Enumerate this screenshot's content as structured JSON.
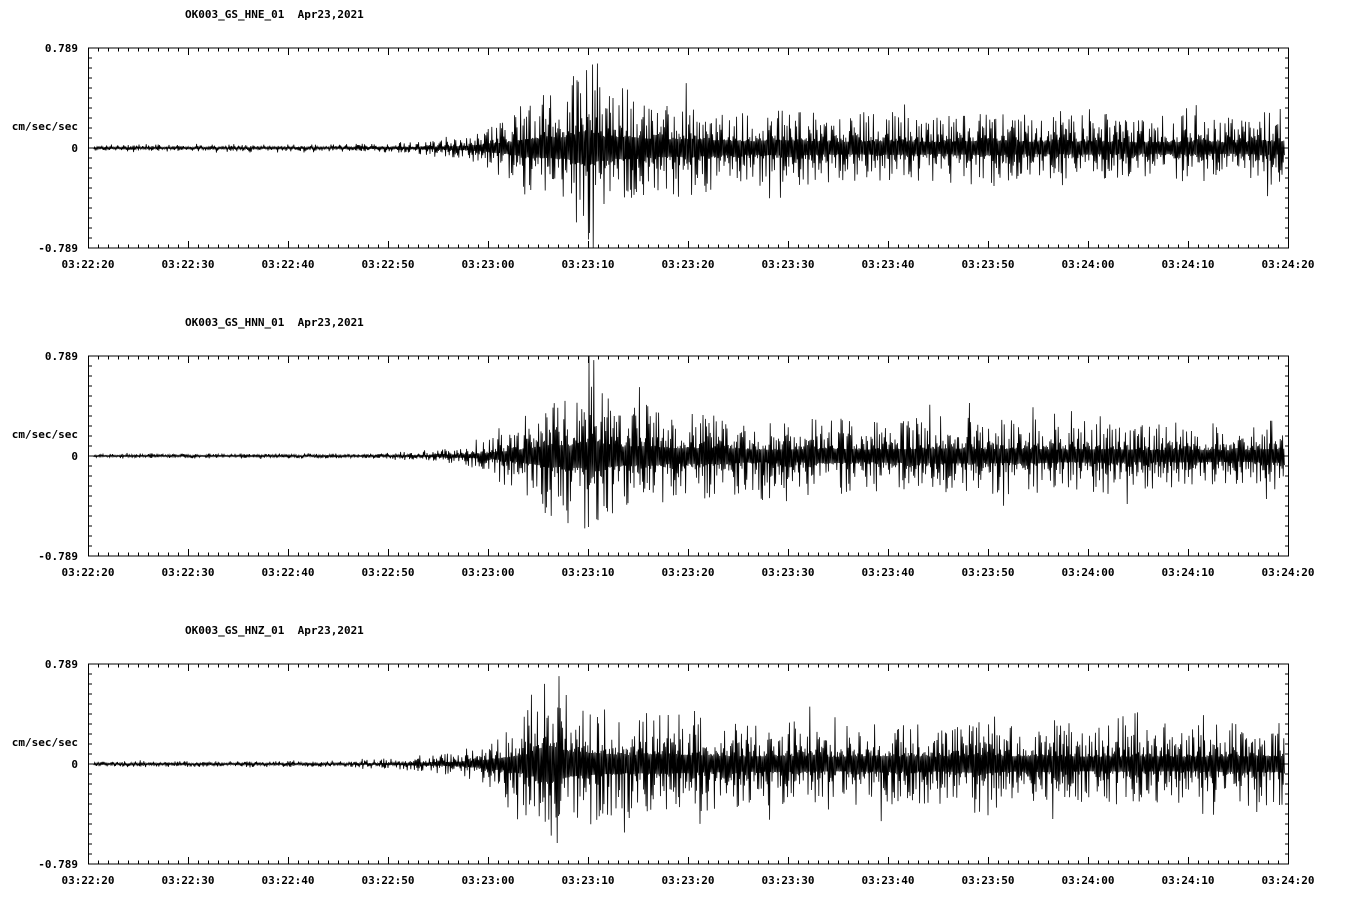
{
  "page": {
    "background": "#ffffff",
    "foreground": "#000000"
  },
  "chart_data": [
    {
      "type": "line",
      "kind": "seismogram-waveform",
      "title": "OK003_GS_HNE_01  Apr23,2021",
      "station": "OK003_GS_HNE_01",
      "date": "Apr23,2021",
      "ylabel": "cm/sec/sec",
      "ylim": [
        -0.789,
        0.789
      ],
      "ytick_labels": [
        "0.789",
        "0",
        "-0.789"
      ],
      "xtick_labels": [
        "03:22:20",
        "03:22:30",
        "03:22:40",
        "03:22:50",
        "03:23:00",
        "03:23:10",
        "03:23:20",
        "03:23:30",
        "03:23:40",
        "03:23:50",
        "03:24:00",
        "03:24:10",
        "03:24:20"
      ],
      "x_major_tick_seconds": 10,
      "x_minor_tick_seconds": 1,
      "window_seconds": 120,
      "trace_color": "#000000",
      "grid": false,
      "seed": 11,
      "envelope": [
        [
          0,
          0.035
        ],
        [
          24,
          0.035
        ],
        [
          30,
          0.05
        ],
        [
          34,
          0.07
        ],
        [
          38,
          0.12
        ],
        [
          40,
          0.22
        ],
        [
          42,
          0.32
        ],
        [
          44,
          0.5
        ],
        [
          46,
          0.55
        ],
        [
          48,
          0.62
        ],
        [
          50,
          1.0
        ],
        [
          51,
          0.72
        ],
        [
          52,
          0.58
        ],
        [
          54,
          0.62
        ],
        [
          56,
          0.52
        ],
        [
          58,
          0.48
        ],
        [
          60,
          0.5
        ],
        [
          63,
          0.42
        ],
        [
          66,
          0.36
        ],
        [
          70,
          0.42
        ],
        [
          75,
          0.34
        ],
        [
          80,
          0.38
        ],
        [
          85,
          0.33
        ],
        [
          90,
          0.4
        ],
        [
          95,
          0.33
        ],
        [
          100,
          0.36
        ],
        [
          105,
          0.31
        ],
        [
          110,
          0.34
        ],
        [
          115,
          0.31
        ],
        [
          118,
          0.38
        ],
        [
          120,
          0.34
        ]
      ]
    },
    {
      "type": "line",
      "kind": "seismogram-waveform",
      "title": "OK003_GS_HNN_01  Apr23,2021",
      "station": "OK003_GS_HNN_01",
      "date": "Apr23,2021",
      "ylabel": "cm/sec/sec",
      "ylim": [
        -0.789,
        0.789
      ],
      "ytick_labels": [
        "0.789",
        "0",
        "-0.789"
      ],
      "xtick_labels": [
        "03:22:20",
        "03:22:30",
        "03:22:40",
        "03:22:50",
        "03:23:00",
        "03:23:10",
        "03:23:20",
        "03:23:30",
        "03:23:40",
        "03:23:50",
        "03:24:00",
        "03:24:10",
        "03:24:20"
      ],
      "x_major_tick_seconds": 10,
      "x_minor_tick_seconds": 1,
      "window_seconds": 120,
      "trace_color": "#000000",
      "grid": false,
      "seed": 22,
      "envelope": [
        [
          0,
          0.025
        ],
        [
          28,
          0.025
        ],
        [
          34,
          0.05
        ],
        [
          38,
          0.1
        ],
        [
          41,
          0.2
        ],
        [
          43,
          0.35
        ],
        [
          45,
          0.5
        ],
        [
          46.5,
          0.65
        ],
        [
          48,
          0.55
        ],
        [
          49.5,
          0.7
        ],
        [
          50.5,
          0.9
        ],
        [
          52,
          0.6
        ],
        [
          54,
          0.5
        ],
        [
          56,
          0.55
        ],
        [
          58,
          0.45
        ],
        [
          60,
          0.42
        ],
        [
          63,
          0.46
        ],
        [
          66,
          0.36
        ],
        [
          70,
          0.34
        ],
        [
          74,
          0.4
        ],
        [
          78,
          0.35
        ],
        [
          82,
          0.38
        ],
        [
          86,
          0.42
        ],
        [
          90,
          0.38
        ],
        [
          94,
          0.4
        ],
        [
          98,
          0.34
        ],
        [
          102,
          0.38
        ],
        [
          106,
          0.33
        ],
        [
          110,
          0.35
        ],
        [
          115,
          0.31
        ],
        [
          120,
          0.4
        ]
      ]
    },
    {
      "type": "line",
      "kind": "seismogram-waveform",
      "title": "OK003_GS_HNZ_01  Apr23,2021",
      "station": "OK003_GS_HNZ_01",
      "date": "Apr23,2021",
      "ylabel": "cm/sec/sec",
      "ylim": [
        -0.789,
        0.789
      ],
      "ytick_labels": [
        "0.789",
        "0",
        "-0.789"
      ],
      "xtick_labels": [
        "03:22:20",
        "03:22:30",
        "03:22:40",
        "03:22:50",
        "03:23:00",
        "03:23:10",
        "03:23:20",
        "03:23:30",
        "03:23:40",
        "03:23:50",
        "03:24:00",
        "03:24:10",
        "03:24:20"
      ],
      "x_major_tick_seconds": 10,
      "x_minor_tick_seconds": 1,
      "window_seconds": 120,
      "trace_color": "#000000",
      "grid": false,
      "seed": 33,
      "envelope": [
        [
          0,
          0.03
        ],
        [
          25,
          0.03
        ],
        [
          30,
          0.05
        ],
        [
          34,
          0.08
        ],
        [
          37,
          0.12
        ],
        [
          40,
          0.25
        ],
        [
          42,
          0.38
        ],
        [
          44,
          0.55
        ],
        [
          45.5,
          0.95
        ],
        [
          46.5,
          1.0
        ],
        [
          48,
          0.7
        ],
        [
          50,
          0.62
        ],
        [
          52,
          0.55
        ],
        [
          54,
          0.5
        ],
        [
          57,
          0.55
        ],
        [
          60,
          0.5
        ],
        [
          63,
          0.45
        ],
        [
          66,
          0.42
        ],
        [
          70,
          0.45
        ],
        [
          75,
          0.4
        ],
        [
          80,
          0.44
        ],
        [
          85,
          0.4
        ],
        [
          90,
          0.52
        ],
        [
          92,
          0.42
        ],
        [
          96,
          0.45
        ],
        [
          100,
          0.4
        ],
        [
          105,
          0.42
        ],
        [
          110,
          0.4
        ],
        [
          115,
          0.42
        ],
        [
          120,
          0.44
        ]
      ]
    }
  ]
}
